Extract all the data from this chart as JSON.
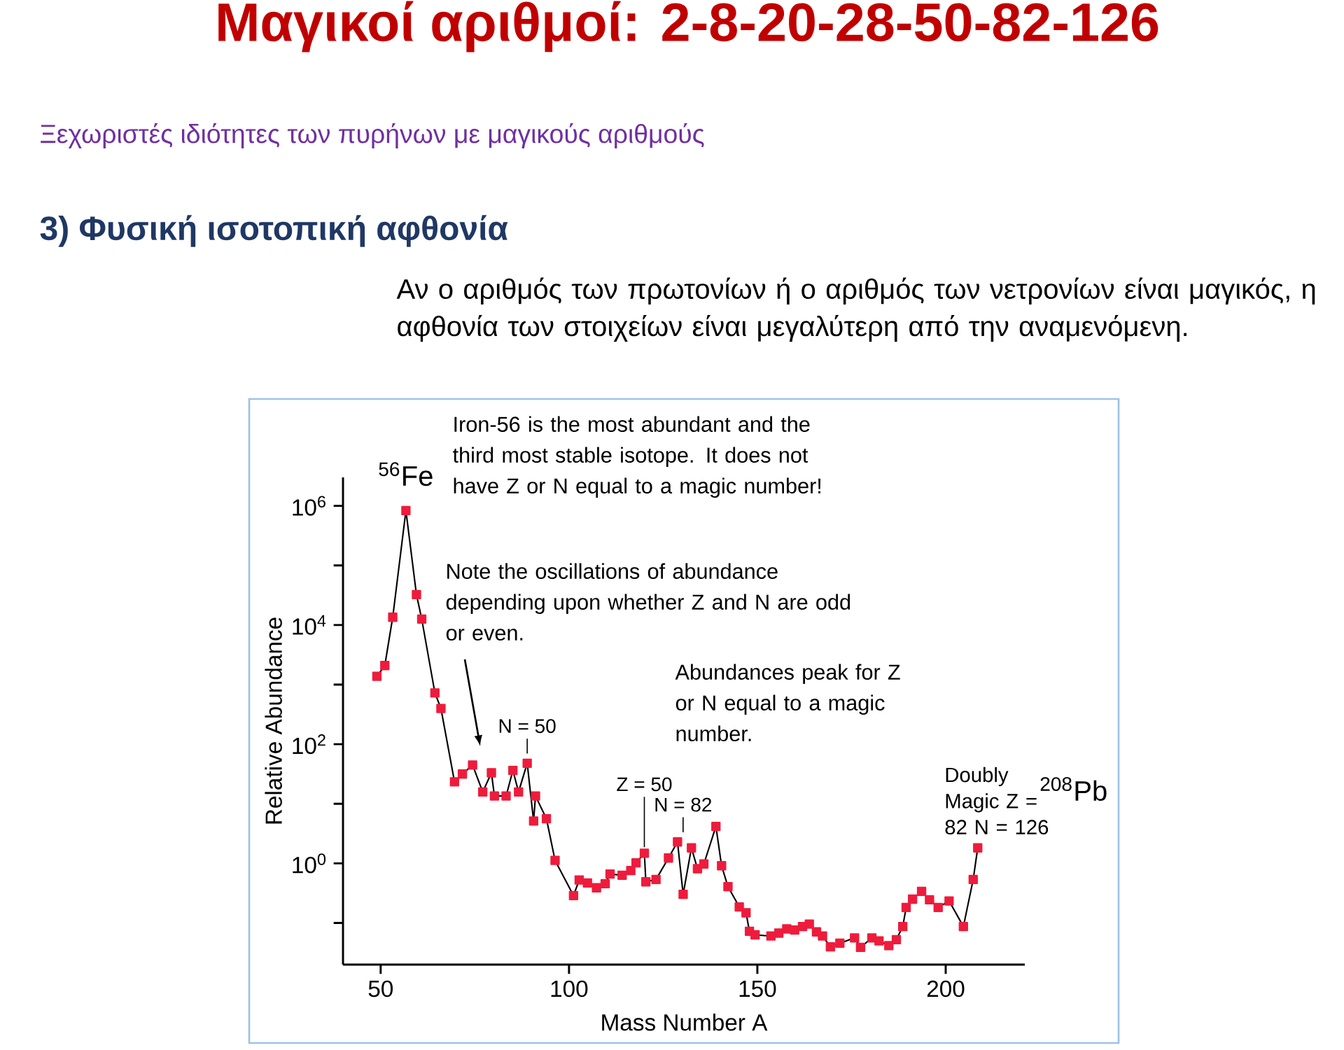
{
  "chart_data": {
    "type": "line",
    "title": "Μαγικοί αριθμοί: 2-8-20-28-50-82-126",
    "subtitle": "Ξεχωριστές ιδιότητες των πυρήνων με μαγικούς αριθμούς",
    "xlabel": "Mass Number A",
    "ylabel": "Relative Abundance",
    "xlim": [
      40,
      221
    ],
    "xticks": [
      50,
      100,
      150,
      200
    ],
    "ylim": [
      0.02,
      3000000
    ],
    "log": "y",
    "yticks": [
      {
        "value": 0.1,
        "label": null
      },
      {
        "value": 1,
        "label": "10$^{0}$"
      },
      {
        "value": 10,
        "label": null
      },
      {
        "value": 100,
        "label": "10$^{2}$"
      },
      {
        "value": 1000,
        "label": null
      },
      {
        "value": 10000,
        "label": "10$^{4}$"
      },
      {
        "value": 100000,
        "label": null
      },
      {
        "value": 1000000,
        "label": "10$^{6}$"
      }
    ],
    "grid": false,
    "marker": "square",
    "line_style": "solid",
    "series": [
      {
        "color": "#ee1c3c",
        "x": [
          49,
          51.1,
          53.2,
          56.7,
          59.5,
          60.9,
          64.4,
          66,
          69.6,
          71.7,
          74.4,
          77.1,
          79.4,
          80.2,
          83.3,
          85.1,
          86.6,
          88.9,
          90.6,
          91.1,
          94,
          96.3,
          101.2,
          102.7,
          104.9,
          107.3,
          109.6,
          110.9,
          114.1,
          116.4,
          117.8,
          120,
          120.4,
          123.1,
          126.4,
          128.8,
          130.3,
          132.5,
          134.1,
          135.8,
          139,
          140.5,
          142.2,
          145.2,
          147,
          147.9,
          149.4,
          153.6,
          155.7,
          157.8,
          159.9,
          162,
          163.8,
          165.7,
          167.3,
          169.4,
          171.9,
          175.8,
          177.4,
          180.4,
          182.3,
          184.9,
          186.9,
          188.6,
          189.5,
          191.2,
          193.6,
          195.7,
          198,
          200.9,
          204.7,
          207.3,
          208.5
        ],
        "values": [
          1380,
          2090,
          13500,
          832000,
          32400,
          12600,
          724,
          398,
          23.4,
          31.6,
          44.7,
          15.8,
          33.1,
          13.5,
          13.5,
          36.3,
          15.8,
          47.9,
          5.13,
          13.5,
          5.62,
          1.12,
          0.288,
          0.525,
          0.468,
          0.389,
          0.457,
          0.661,
          0.631,
          0.759,
          1.02,
          1.48,
          0.49,
          0.537,
          1.23,
          2.29,
          0.302,
          1.82,
          0.813,
          0.977,
          4.17,
          0.912,
          0.407,
          0.186,
          0.148,
          0.0724,
          0.0631,
          0.0603,
          0.0676,
          0.0794,
          0.0759,
          0.0871,
          0.0955,
          0.0708,
          0.0603,
          0.0398,
          0.0457,
          0.0562,
          0.0389,
          0.0562,
          0.0501,
          0.0417,
          0.0525,
          0.0871,
          0.182,
          0.251,
          0.339,
          0.245,
          0.182,
          0.234,
          0.0871,
          0.537,
          1.82
        ]
      }
    ],
    "annotations": [
      "3) Φυσική ισοτοπική αφθονία",
      "Αν ο αριθμός των πρωτονίων ή ο αριθμός των νετρονίων είναι μαγικός, η αφθονία των στοιχείων είναι μεγαλύτερη από την αναμενόμενη.",
      {
        "text": "$^{56}$Fe",
        "x": 56.7,
        "y": 832000
      },
      "Iron-56 is the most abundant and the third most stable isotope. It does not have Z or N equal to a magic number!",
      "Note the oscillations of abundance depending upon whether Z and N are odd or even.",
      {
        "text": "N = 50",
        "x": 88.9,
        "y": 47.9
      },
      {
        "text": "Z = 50",
        "x": 120,
        "y": 1.48
      },
      {
        "text": "N = 82",
        "x": 128.8,
        "y": 2.29
      },
      "Abundances peak for Z or N equal to a magic number.",
      {
        "text": "Doubly Magic Z = 82 N = 126",
        "x": 208.5,
        "y": 1.82
      },
      {
        "text": "$^{208}$Pb",
        "x": 208.5,
        "y": 1.82
      }
    ]
  }
}
